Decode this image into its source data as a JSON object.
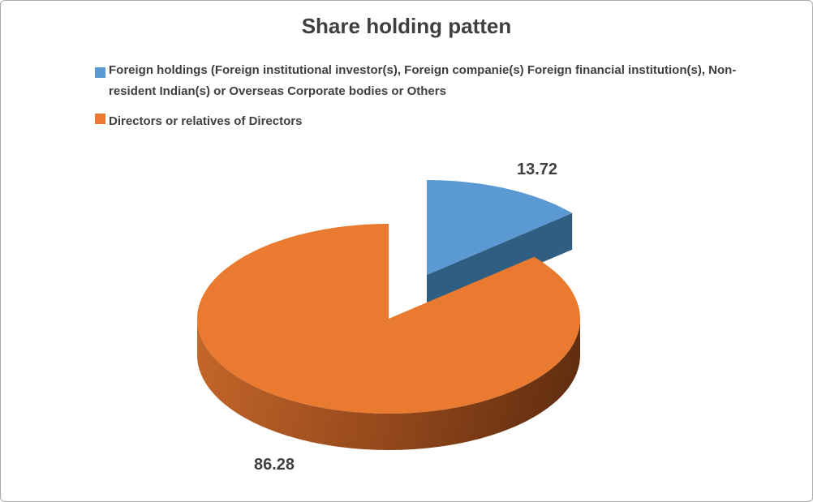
{
  "chart_data": {
    "type": "pie",
    "style": "3d_exploded_pie",
    "title": "Share holding patten",
    "legend_position": "top-left",
    "text_color": "#3F3F3F",
    "series": [
      {
        "label": "Foreign holdings (Foreign institutional  investor(s), Foreign companie(s) Foreign financial institution(s), Non-resident Indian(s) or Overseas Corporate bodies or Others",
        "value": 13.72,
        "data_label": "13.72",
        "color": "#5B99D3",
        "side_color": "#305E83"
      },
      {
        "label": "Directors or relatives of Directors",
        "value": 86.28,
        "data_label": "86.28",
        "color": "#EA7A30",
        "side_gradient": [
          "#C4662A",
          "#96491C",
          "#5C2B0E"
        ]
      }
    ]
  }
}
